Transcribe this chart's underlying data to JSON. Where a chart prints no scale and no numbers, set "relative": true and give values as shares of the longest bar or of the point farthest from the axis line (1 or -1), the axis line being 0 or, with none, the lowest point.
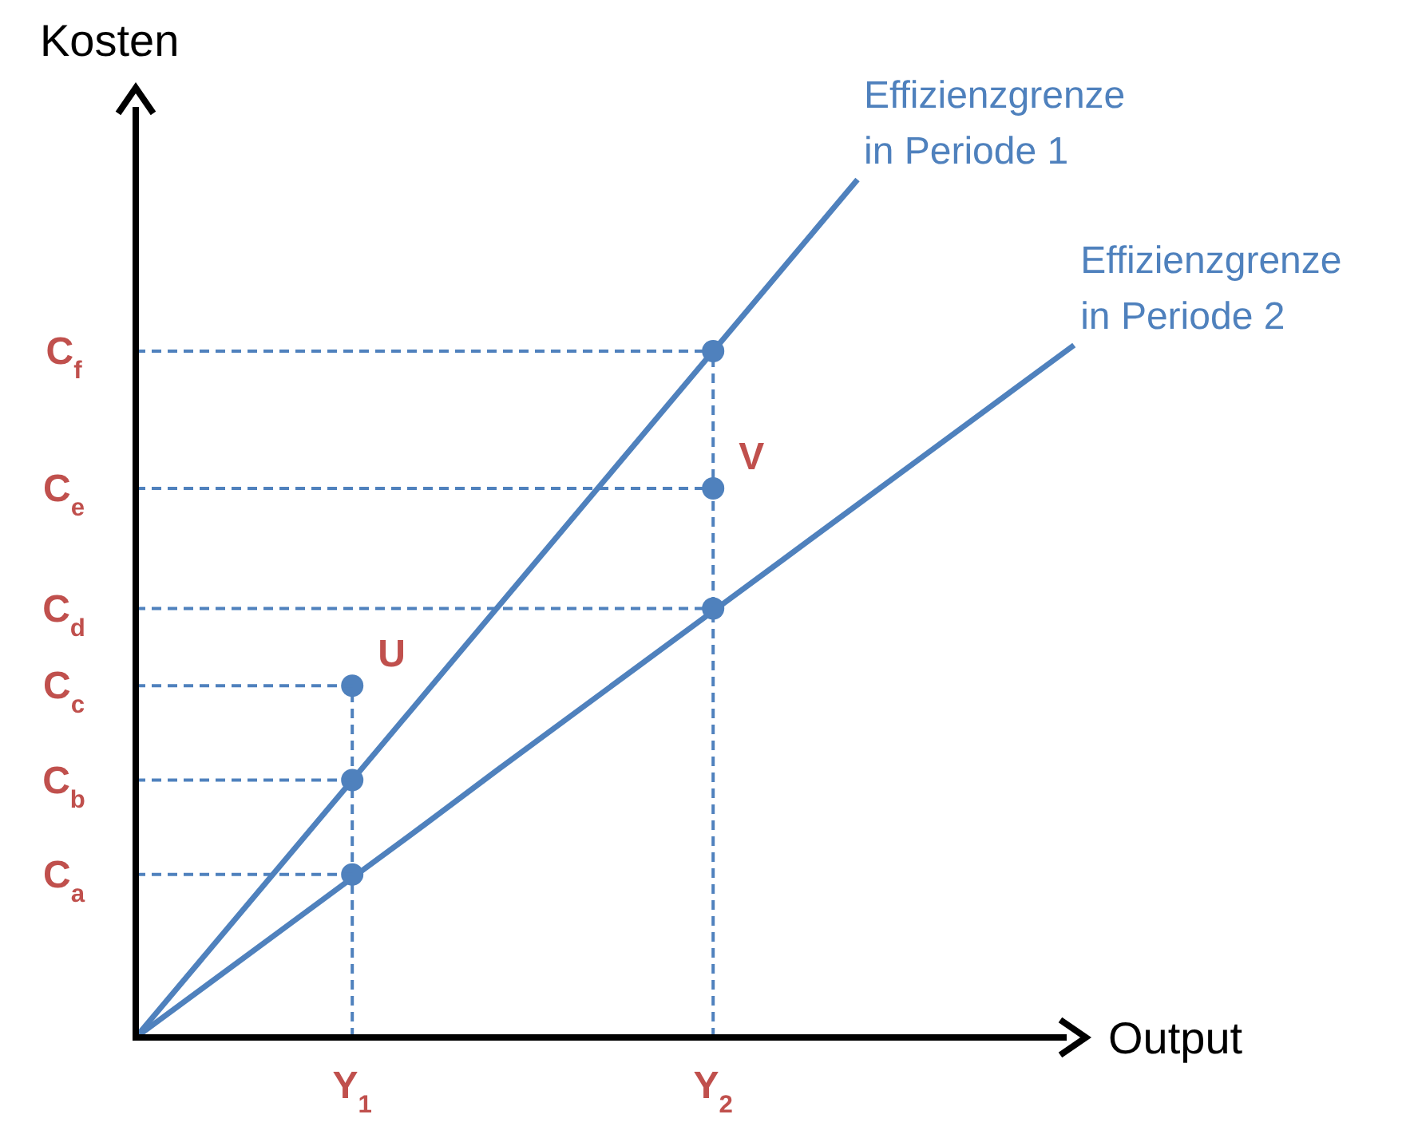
{
  "chart_data": {
    "type": "line",
    "xlabel": "Output",
    "ylabel": "Kosten",
    "relative": true,
    "categories": [
      null,
      null,
      null,
      "Y$_{1}$",
      null,
      null,
      null,
      null,
      "Y$_{2}$",
      null,
      null,
      null,
      null,
      null
    ],
    "series": [
      {
        "name": "Effizienzgrenze in Periode 1",
        "color": "#4f81bd",
        "values": [
          0,
          0.1,
          0.2,
          0.3,
          0.4,
          0.5,
          0.6,
          0.7,
          0.8,
          0.9,
          1,
          null,
          null,
          null
        ],
        "line_style": "solid"
      },
      {
        "name": "Effizienzgrenze in Periode 2",
        "color": "#4f81bd",
        "values": [
          0,
          0.062,
          0.124,
          0.186,
          0.248,
          0.311,
          0.373,
          0.435,
          0.497,
          0.559,
          0.621,
          0.683,
          0.745,
          0.807
        ],
        "line_style": "solid"
      },
      {
        "type": "scatter",
        "color": "#4f81bd",
        "x": [
          "Y$_{1}$",
          "Y$_{1}$",
          "Y$_{1}$",
          "Y$_{2}$",
          "Y$_{2}$",
          "Y$_{2}$"
        ],
        "values": [
          0.19,
          0.3,
          0.41,
          0.5,
          0.64,
          0.8
        ],
        "marker": "circle"
      }
    ],
    "ref_lines": [
      {
        "axis": "y",
        "value": 0.19,
        "label": "C$_{a}$",
        "color": "#4f81bd",
        "line_style": "dashed"
      },
      {
        "axis": "y",
        "value": 0.3,
        "label": "C$_{b}$",
        "color": "#4f81bd",
        "line_style": "dashed"
      },
      {
        "axis": "y",
        "value": 0.41,
        "label": "C$_{c}$",
        "color": "#4f81bd",
        "line_style": "dashed"
      },
      {
        "axis": "y",
        "value": 0.5,
        "label": "C$_{d}$",
        "color": "#4f81bd",
        "line_style": "dashed"
      },
      {
        "axis": "y",
        "value": 0.64,
        "label": "C$_{e}$",
        "color": "#4f81bd",
        "line_style": "dashed"
      },
      {
        "axis": "y",
        "value": 0.8,
        "label": "C$_{f}$",
        "color": "#4f81bd",
        "line_style": "dashed"
      }
    ],
    "annotations": [
      {
        "text": "U",
        "x": "Y$_{1}$",
        "y": 0.41
      },
      {
        "text": "V",
        "x": "Y$_{2}$",
        "y": 0.64
      }
    ]
  }
}
